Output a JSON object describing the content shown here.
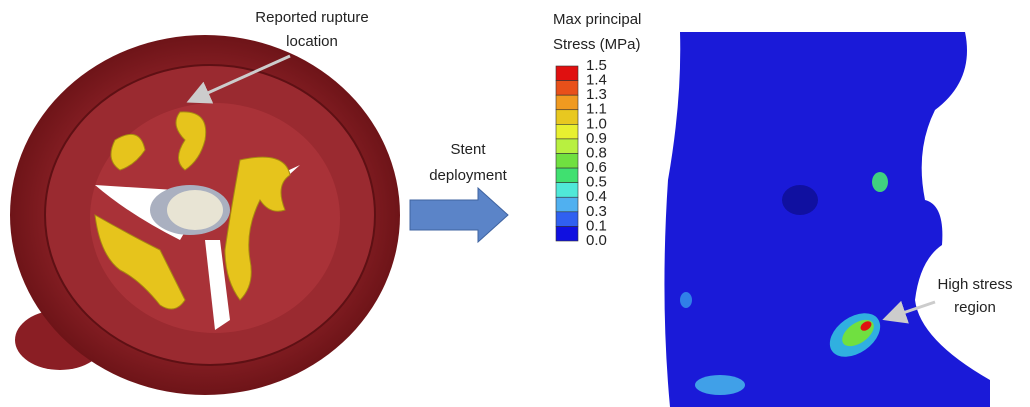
{
  "rupture_label": [
    "Reported rupture",
    "location"
  ],
  "arrow_label": [
    "Stent",
    "deployment"
  ],
  "legend": {
    "title": [
      "Max principal",
      "Stress (MPa)"
    ],
    "ticks": [
      "1.5",
      "1.4",
      "1.3",
      "1.1",
      "1.0",
      "0.9",
      "0.8",
      "0.6",
      "0.5",
      "0.4",
      "0.3",
      "0.1",
      "0.0"
    ],
    "colors": [
      "#e01010",
      "#e8501a",
      "#f09a20",
      "#e8c820",
      "#e8f030",
      "#b8f040",
      "#70e040",
      "#40e070",
      "#50e8d8",
      "#50b0f0",
      "#3060f0",
      "#1010e0"
    ]
  },
  "high_stress_label": [
    "High stress",
    "region"
  ]
}
